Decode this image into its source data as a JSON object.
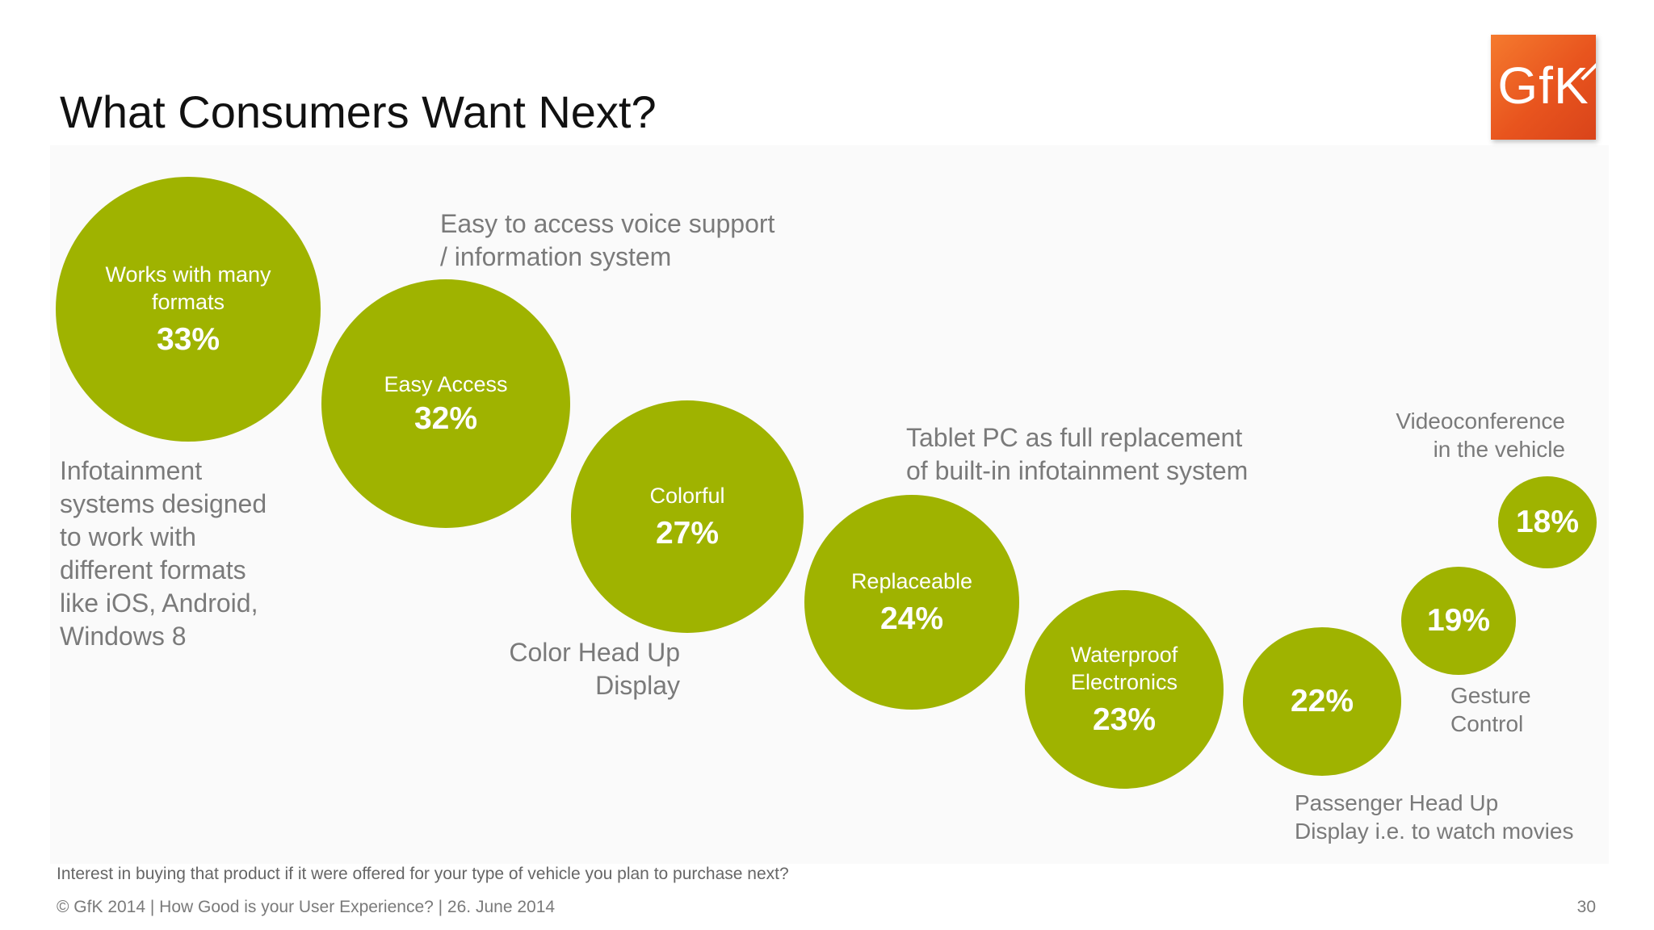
{
  "title": "What Consumers Want Next?",
  "logo_text": "GfK",
  "colors": {
    "bubble": "#9fb300",
    "logo": "#e8541e",
    "text_gray": "#7a7a7a"
  },
  "chart_data": {
    "type": "bubble",
    "series": [
      {
        "label": "Works with many formats",
        "value": "33%",
        "description": "Infotainment\nsystems designed\nto work with\ndifferent formats\nlike iOS, Android,\nWindows 8"
      },
      {
        "label": "Easy Access",
        "value": "32%",
        "description": "Easy to access voice support\n/ information system"
      },
      {
        "label": "Colorful",
        "value": "27%",
        "description": "Color Head Up\nDisplay"
      },
      {
        "label": "Replaceable",
        "value": "24%",
        "description": "Tablet PC as full replacement\nof built-in infotainment system"
      },
      {
        "label": "Waterproof Electronics",
        "value": "23%",
        "description": ""
      },
      {
        "label": "",
        "value": "22%",
        "description": "Passenger Head Up\nDisplay i.e. to watch movies"
      },
      {
        "label": "",
        "value": "19%",
        "description": "Gesture\nControl"
      },
      {
        "label": "",
        "value": "18%",
        "description": "Videoconference\nin the vehicle"
      }
    ]
  },
  "footnote": "Interest in buying that product if it were offered for your type of vehicle you plan to purchase next?",
  "footer": "© GfK 2014 | How Good is your User Experience? | 26. June 2014",
  "page_number": "30"
}
